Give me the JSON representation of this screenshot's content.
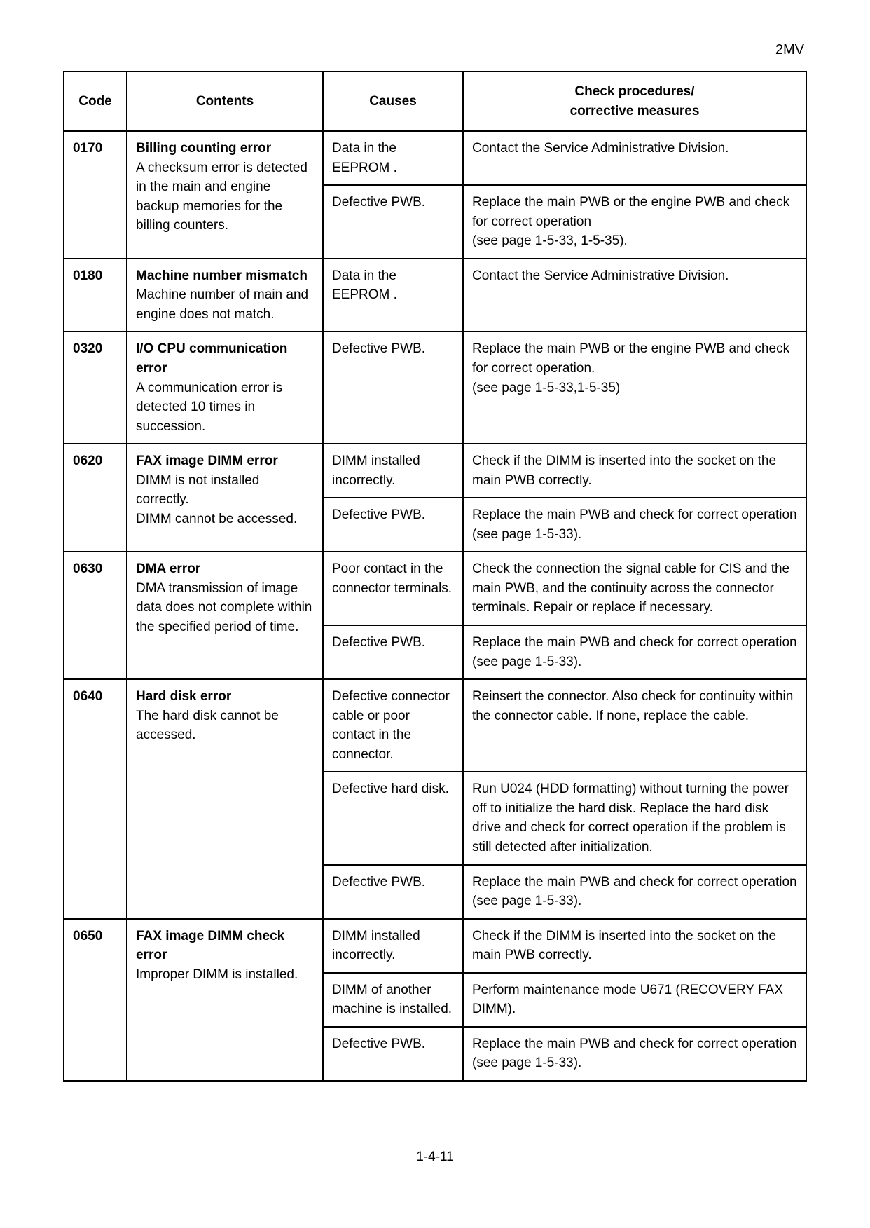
{
  "header": "2MV",
  "pageNumber": "1-4-11",
  "tableHeaders": {
    "code": "Code",
    "contents": "Contents",
    "causes": "Causes",
    "check": "Check procedures/\ncorrective measures"
  },
  "rows": [
    {
      "code": "0170",
      "contentsTitle": "Billing counting error",
      "contentsBody": "A checksum error is detected in the main and engine backup memories for the billing counters.",
      "sub": [
        {
          "cause": "Data in the EEPROM .",
          "check": "Contact the Service Administrative Division."
        },
        {
          "cause": "Defective PWB.",
          "check": "Replace the main PWB or the engine PWB and check for correct operation\n(see page 1-5-33, 1-5-35)."
        }
      ]
    },
    {
      "code": "0180",
      "contentsTitle": "Machine number mismatch",
      "contentsBody": "Machine number of main and engine does not match.",
      "sub": [
        {
          "cause": "Data in the EEPROM .",
          "check": "Contact the Service Administrative Division."
        }
      ]
    },
    {
      "code": "0320",
      "contentsTitle": "I/O CPU communication error",
      "contentsBody": "A communication error is detected 10 times in succession.",
      "sub": [
        {
          "cause": "Defective PWB.",
          "check": "Replace the main PWB or the engine PWB and check for correct operation.\n(see page 1-5-33,1-5-35)"
        }
      ]
    },
    {
      "code": "0620",
      "contentsTitle": "FAX image DIMM error",
      "contentsBody": "DIMM is not installed correctly.\nDIMM cannot be accessed.",
      "sub": [
        {
          "cause": "DIMM installed incorrectly.",
          "check": "Check if the DIMM is inserted into the socket on the main PWB correctly."
        },
        {
          "cause": "Defective PWB.",
          "check": "Replace the main PWB and check for correct operation (see page 1-5-33)."
        }
      ]
    },
    {
      "code": "0630",
      "contentsTitle": "DMA error",
      "contentsBody": "DMA transmission of image data does not complete within the specified period of time.",
      "sub": [
        {
          "cause": "Poor contact in the connector terminals.",
          "check": "Check the connection the signal cable for CIS and the main PWB, and the continuity across the connector terminals. Repair or replace if necessary."
        },
        {
          "cause": "Defective PWB.",
          "check": "Replace the main PWB and check for correct operation (see page 1-5-33)."
        }
      ]
    },
    {
      "code": "0640",
      "contentsTitle": "Hard disk error",
      "contentsBody": "The hard disk cannot be accessed.",
      "sub": [
        {
          "cause": "Defective connector cable or poor contact in the connector.",
          "check": "Reinsert the connector. Also check for continuity within the connector cable. If none, replace the cable."
        },
        {
          "cause": "Defective hard disk.",
          "check": "Run U024 (HDD formatting) without turning the power off to initialize the hard disk. Replace the hard disk drive and check for correct operation if the problem is still detected after initialization."
        },
        {
          "cause": "Defective PWB.",
          "check": "Replace the main PWB and check for correct operation (see page 1-5-33)."
        }
      ]
    },
    {
      "code": "0650",
      "contentsTitle": "FAX image DIMM check error",
      "contentsBody": "Improper DIMM is installed.",
      "sub": [
        {
          "cause": "DIMM installed incorrectly.",
          "check": "Check if the DIMM is inserted into the socket on the main PWB correctly."
        },
        {
          "cause": "DIMM of another machine is installed.",
          "check": "Perform maintenance mode U671 (RECOVERY FAX DIMM)."
        },
        {
          "cause": "Defective PWB.",
          "check": "Replace the main PWB and check for correct operation (see page 1-5-33)."
        }
      ]
    }
  ]
}
